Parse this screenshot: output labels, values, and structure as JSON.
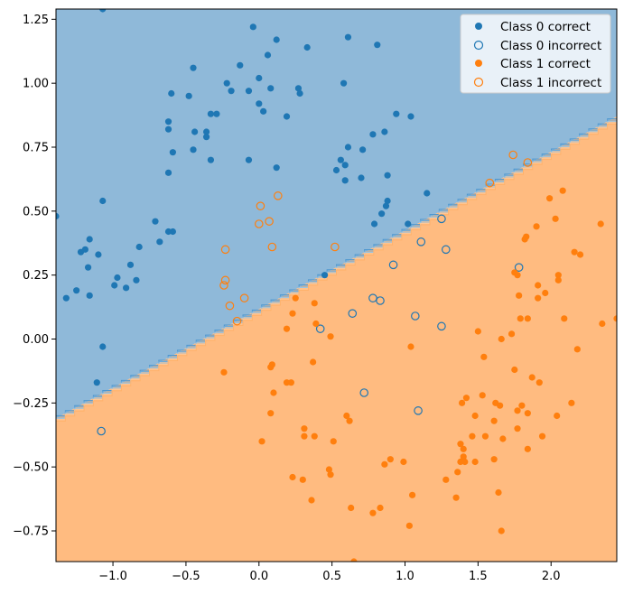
{
  "chart_data": {
    "type": "scatter",
    "title": "",
    "xlabel": "",
    "ylabel": "",
    "xlim": [
      -1.39,
      2.45
    ],
    "ylim": [
      -0.87,
      1.29
    ],
    "grid": false,
    "legend_position": "top-right",
    "x_ticks": [
      -1.0,
      -0.5,
      0.0,
      0.5,
      1.0,
      1.5,
      2.0
    ],
    "x_tick_labels": [
      "−1.0",
      "−0.5",
      "0.0",
      "0.5",
      "1.0",
      "1.5",
      "2.0"
    ],
    "y_ticks": [
      -0.75,
      -0.5,
      -0.25,
      0.0,
      0.25,
      0.5,
      0.75,
      1.0,
      1.25
    ],
    "y_tick_labels": [
      "−0.75",
      "−0.50",
      "−0.25",
      "0.00",
      "0.25",
      "0.50",
      "0.75",
      "1.00",
      "1.25"
    ],
    "decision_boundary": {
      "x": [
        -1.39,
        2.45
      ],
      "y": [
        -0.31,
        0.87
      ],
      "region_above": "Class 0",
      "region_below": "Class 1"
    },
    "colors": {
      "class0": "#1f77b4",
      "class1": "#ff7f0e",
      "region0": "#8fb9d9",
      "region1": "#ffbb80",
      "boundary": "#5fa6d8"
    },
    "series": [
      {
        "name": "Class 0 correct",
        "marker": "filled",
        "color": "#1f77b4",
        "points": [
          [
            -1.07,
            1.29
          ],
          [
            -0.04,
            1.22
          ],
          [
            0.61,
            1.18
          ],
          [
            0.12,
            1.17
          ],
          [
            0.06,
            1.11
          ],
          [
            0.33,
            1.14
          ],
          [
            0.81,
            1.15
          ],
          [
            -0.45,
            1.06
          ],
          [
            -0.13,
            1.07
          ],
          [
            0.0,
            1.02
          ],
          [
            -0.6,
            0.96
          ],
          [
            -0.48,
            0.95
          ],
          [
            -0.22,
            1.0
          ],
          [
            -0.19,
            0.97
          ],
          [
            -0.07,
            0.97
          ],
          [
            0.08,
            0.98
          ],
          [
            0.27,
            0.98
          ],
          [
            0.28,
            0.96
          ],
          [
            0.58,
            1.0
          ],
          [
            0.0,
            0.92
          ],
          [
            0.03,
            0.89
          ],
          [
            0.19,
            0.87
          ],
          [
            -0.62,
            0.85
          ],
          [
            -0.33,
            0.88
          ],
          [
            -0.29,
            0.88
          ],
          [
            -0.62,
            0.82
          ],
          [
            -0.44,
            0.81
          ],
          [
            -0.36,
            0.81
          ],
          [
            -0.36,
            0.79
          ],
          [
            -0.59,
            0.73
          ],
          [
            -0.45,
            0.74
          ],
          [
            -0.33,
            0.7
          ],
          [
            -0.07,
            0.7
          ],
          [
            0.12,
            0.67
          ],
          [
            0.56,
            0.7
          ],
          [
            0.61,
            0.75
          ],
          [
            0.78,
            0.8
          ],
          [
            0.86,
            0.81
          ],
          [
            0.71,
            0.74
          ],
          [
            0.94,
            0.88
          ],
          [
            1.04,
            0.87
          ],
          [
            -0.62,
            0.65
          ],
          [
            0.53,
            0.66
          ],
          [
            0.59,
            0.68
          ],
          [
            0.59,
            0.62
          ],
          [
            0.7,
            0.63
          ],
          [
            0.88,
            0.64
          ],
          [
            0.88,
            0.54
          ],
          [
            0.87,
            0.52
          ],
          [
            1.15,
            0.57
          ],
          [
            -1.07,
            0.54
          ],
          [
            -1.39,
            0.48
          ],
          [
            -0.71,
            0.46
          ],
          [
            -0.68,
            0.38
          ],
          [
            -0.59,
            0.42
          ],
          [
            -0.62,
            0.42
          ],
          [
            -1.22,
            0.34
          ],
          [
            -1.19,
            0.35
          ],
          [
            -1.16,
            0.39
          ],
          [
            -1.17,
            0.28
          ],
          [
            -1.1,
            0.33
          ],
          [
            -0.82,
            0.36
          ],
          [
            -0.97,
            0.24
          ],
          [
            -0.88,
            0.29
          ],
          [
            -0.84,
            0.23
          ],
          [
            -0.99,
            0.21
          ],
          [
            -0.91,
            0.2
          ],
          [
            -1.32,
            0.16
          ],
          [
            -1.25,
            0.19
          ],
          [
            -1.16,
            0.17
          ],
          [
            -1.11,
            -0.17
          ],
          [
            -1.07,
            -0.03
          ],
          [
            0.84,
            0.49
          ],
          [
            0.79,
            0.45
          ],
          [
            1.02,
            0.45
          ],
          [
            0.45,
            0.25
          ]
        ]
      },
      {
        "name": "Class 0 incorrect",
        "marker": "hollow",
        "color": "#1f77b4",
        "points": [
          [
            1.25,
            0.47
          ],
          [
            1.11,
            0.38
          ],
          [
            1.28,
            0.35
          ],
          [
            0.92,
            0.29
          ],
          [
            1.78,
            0.28
          ],
          [
            0.78,
            0.16
          ],
          [
            0.83,
            0.15
          ],
          [
            0.64,
            0.1
          ],
          [
            1.07,
            0.09
          ],
          [
            1.25,
            0.05
          ],
          [
            0.42,
            0.04
          ],
          [
            0.72,
            -0.21
          ],
          [
            1.09,
            -0.28
          ],
          [
            -1.08,
            -0.36
          ]
        ]
      },
      {
        "name": "Class 1 correct",
        "marker": "filled",
        "color": "#ff7f0e",
        "points": [
          [
            2.45,
            0.08
          ],
          [
            1.99,
            0.55
          ],
          [
            2.08,
            0.58
          ],
          [
            2.03,
            0.47
          ],
          [
            1.9,
            0.44
          ],
          [
            1.82,
            0.39
          ],
          [
            1.83,
            0.4
          ],
          [
            2.16,
            0.34
          ],
          [
            2.2,
            0.33
          ],
          [
            2.34,
            0.45
          ],
          [
            1.75,
            0.26
          ],
          [
            1.77,
            0.25
          ],
          [
            1.96,
            0.18
          ],
          [
            1.91,
            0.21
          ],
          [
            1.91,
            0.16
          ],
          [
            2.05,
            0.25
          ],
          [
            2.05,
            0.23
          ],
          [
            1.78,
            0.17
          ],
          [
            1.84,
            0.08
          ],
          [
            2.09,
            0.08
          ],
          [
            2.35,
            0.06
          ],
          [
            1.79,
            0.08
          ],
          [
            1.73,
            0.02
          ],
          [
            1.5,
            0.03
          ],
          [
            1.66,
            0.0
          ],
          [
            2.18,
            -0.04
          ],
          [
            1.54,
            -0.07
          ],
          [
            1.04,
            -0.03
          ],
          [
            1.75,
            -0.12
          ],
          [
            1.87,
            -0.15
          ],
          [
            1.92,
            -0.17
          ],
          [
            1.53,
            -0.22
          ],
          [
            1.42,
            -0.23
          ],
          [
            1.39,
            -0.25
          ],
          [
            1.62,
            -0.25
          ],
          [
            1.65,
            -0.26
          ],
          [
            1.8,
            -0.26
          ],
          [
            1.77,
            -0.28
          ],
          [
            1.84,
            -0.29
          ],
          [
            2.14,
            -0.25
          ],
          [
            2.04,
            -0.3
          ],
          [
            1.48,
            -0.3
          ],
          [
            1.61,
            -0.32
          ],
          [
            1.77,
            -0.35
          ],
          [
            1.67,
            -0.39
          ],
          [
            1.94,
            -0.38
          ],
          [
            1.55,
            -0.38
          ],
          [
            1.84,
            -0.43
          ],
          [
            1.38,
            -0.41
          ],
          [
            1.4,
            -0.43
          ],
          [
            1.46,
            -0.38
          ],
          [
            1.4,
            -0.46
          ],
          [
            1.38,
            -0.48
          ],
          [
            1.36,
            -0.52
          ],
          [
            1.41,
            -0.48
          ],
          [
            1.48,
            -0.48
          ],
          [
            1.61,
            -0.47
          ],
          [
            1.28,
            -0.55
          ],
          [
            1.35,
            -0.62
          ],
          [
            1.64,
            -0.6
          ],
          [
            1.66,
            -0.75
          ],
          [
            1.05,
            -0.61
          ],
          [
            1.03,
            -0.73
          ],
          [
            0.9,
            -0.47
          ],
          [
            0.86,
            -0.49
          ],
          [
            0.99,
            -0.48
          ],
          [
            0.78,
            -0.68
          ],
          [
            0.83,
            -0.66
          ],
          [
            0.63,
            -0.66
          ],
          [
            0.65,
            -0.87
          ],
          [
            0.62,
            -0.32
          ],
          [
            0.6,
            -0.3
          ],
          [
            0.31,
            -0.35
          ],
          [
            0.31,
            -0.38
          ],
          [
            0.38,
            -0.38
          ],
          [
            0.51,
            -0.4
          ],
          [
            0.48,
            -0.51
          ],
          [
            0.49,
            -0.53
          ],
          [
            0.36,
            -0.63
          ],
          [
            0.23,
            -0.54
          ],
          [
            0.3,
            -0.55
          ],
          [
            0.02,
            -0.4
          ],
          [
            0.08,
            -0.29
          ],
          [
            0.08,
            -0.11
          ],
          [
            0.09,
            -0.1
          ],
          [
            0.1,
            -0.21
          ],
          [
            0.19,
            -0.17
          ],
          [
            0.22,
            -0.17
          ],
          [
            0.25,
            0.16
          ],
          [
            0.23,
            0.1
          ],
          [
            0.19,
            0.04
          ],
          [
            0.38,
            0.14
          ],
          [
            0.39,
            0.06
          ],
          [
            0.49,
            0.01
          ],
          [
            0.37,
            -0.09
          ],
          [
            -0.24,
            -0.13
          ]
        ]
      },
      {
        "name": "Class 1 incorrect",
        "marker": "hollow",
        "color": "#ff7f0e",
        "points": [
          [
            1.74,
            0.72
          ],
          [
            1.84,
            0.69
          ],
          [
            1.58,
            0.61
          ],
          [
            0.13,
            0.56
          ],
          [
            0.01,
            0.52
          ],
          [
            0.07,
            0.46
          ],
          [
            0.0,
            0.45
          ],
          [
            0.09,
            0.36
          ],
          [
            -0.23,
            0.35
          ],
          [
            0.52,
            0.36
          ],
          [
            -0.23,
            0.23
          ],
          [
            -0.24,
            0.21
          ],
          [
            -0.2,
            0.13
          ],
          [
            -0.1,
            0.16
          ],
          [
            -0.15,
            0.07
          ]
        ]
      }
    ]
  },
  "legend": {
    "items": [
      {
        "label": "Class 0 correct",
        "marker": "filled",
        "color": "#1f77b4"
      },
      {
        "label": "Class 0 incorrect",
        "marker": "hollow",
        "color": "#1f77b4"
      },
      {
        "label": "Class 1 correct",
        "marker": "filled",
        "color": "#ff7f0e"
      },
      {
        "label": "Class 1 incorrect",
        "marker": "hollow",
        "color": "#ff7f0e"
      }
    ]
  }
}
